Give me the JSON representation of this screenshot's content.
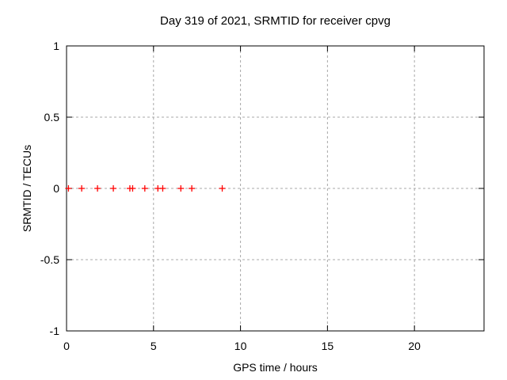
{
  "chart_data": {
    "type": "scatter",
    "title": "Day 319 of 2021, SRMTID for receiver cpvg",
    "xlabel": "GPS time / hours",
    "ylabel": "SRMTID / TECUs",
    "xlim": [
      0,
      24
    ],
    "ylim": [
      -1,
      1
    ],
    "xticks": [
      0,
      5,
      10,
      15,
      20
    ],
    "yticks": [
      1,
      0.5,
      0,
      -0.5,
      -1
    ],
    "grid": "dotted",
    "legend_position": "none",
    "series": [
      {
        "name": "SRMTID",
        "marker": "plus",
        "color": "#ff0000",
        "x": [
          0.11,
          0.87,
          1.78,
          2.69,
          3.64,
          3.8,
          4.5,
          5.25,
          5.53,
          6.57,
          7.2,
          8.95
        ],
        "y": [
          0,
          0,
          0,
          0,
          0,
          0,
          0,
          0,
          0,
          0,
          0,
          0
        ]
      }
    ],
    "colors": {
      "grid": "#a8a8a8",
      "axis": "#000000",
      "background": "#ffffff"
    }
  }
}
